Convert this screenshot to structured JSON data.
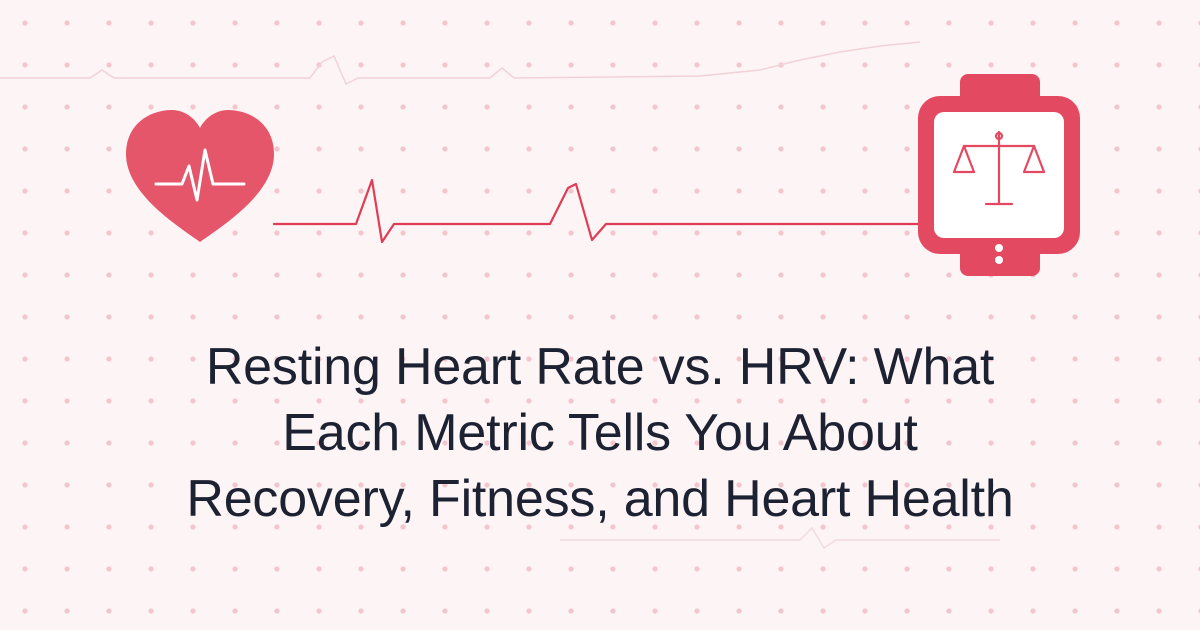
{
  "headline": {
    "line1": "Resting Heart Rate vs. HRV: What",
    "line2": "Each Metric Tells You About",
    "line3": "Recovery, Fitness, and Heart Health"
  },
  "icons": {
    "heart": "heart-with-pulse-icon",
    "heartbeat_line": "ecg-heartbeat-line",
    "watch": "smartwatch-icon",
    "watch_screen": "balance-scale-icon"
  },
  "colors": {
    "background": "#fdf4f5",
    "dots": "#f3c6cd",
    "accent": "#e3475f",
    "heart": "#e5566b",
    "text": "#1d2233"
  }
}
